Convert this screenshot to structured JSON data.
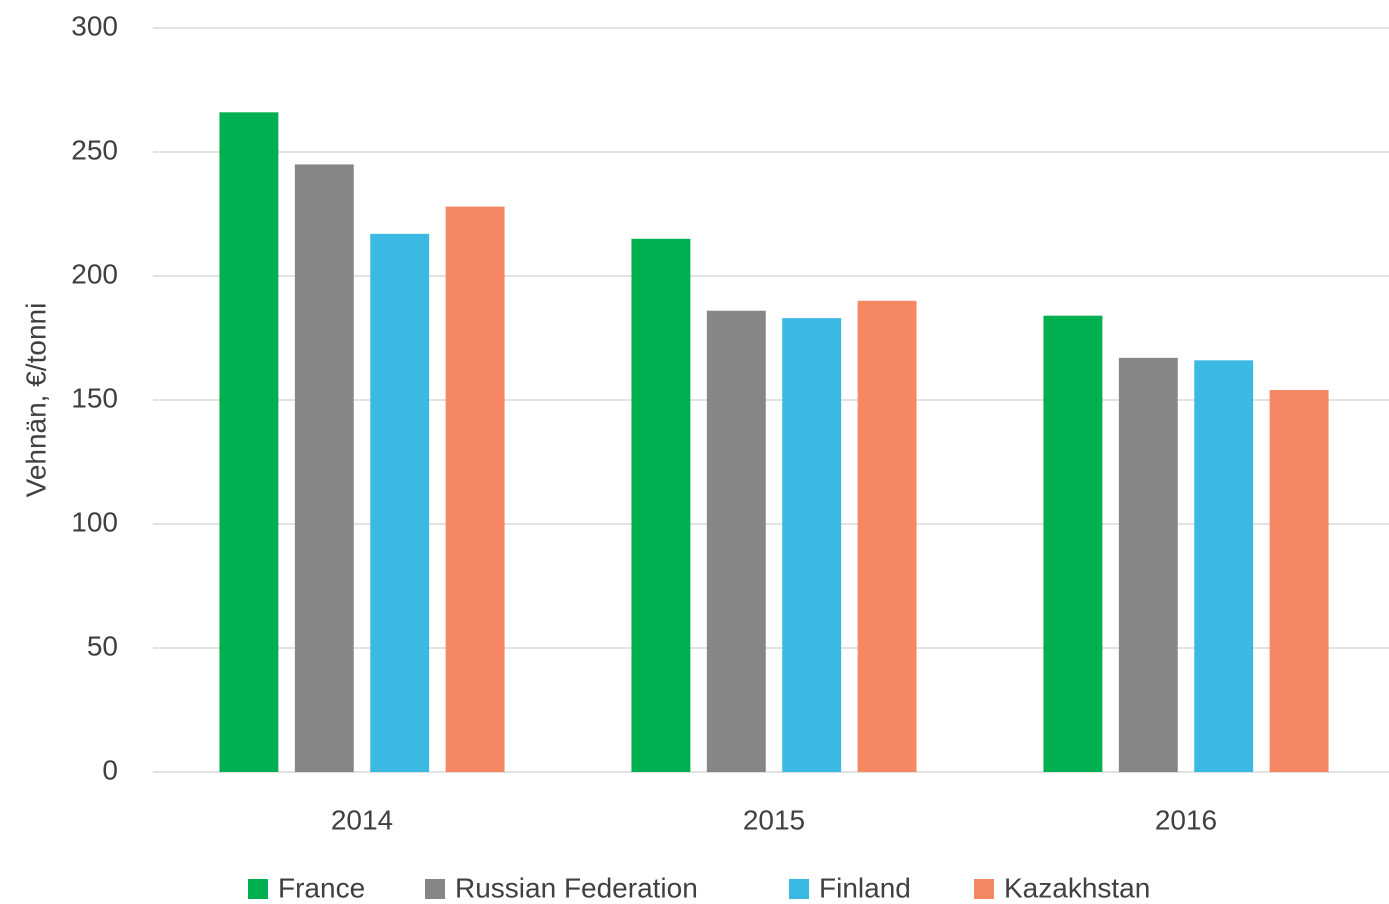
{
  "chart_data": {
    "type": "bar",
    "y_label": "Vehnän, €/tonni",
    "categories": [
      "2014",
      "2015",
      "2016"
    ],
    "series": [
      {
        "name": "France",
        "color": "#00b050",
        "values": [
          266,
          215,
          184
        ]
      },
      {
        "name": "Russian Federation",
        "color": "#868686",
        "values": [
          245,
          186,
          167
        ]
      },
      {
        "name": "Finland",
        "color": "#3cb9e2",
        "values": [
          217,
          183,
          166
        ]
      },
      {
        "name": "Kazakhstan",
        "color": "#f58862",
        "values": [
          228,
          190,
          154
        ]
      }
    ],
    "ylim": [
      0,
      300
    ],
    "yticks": [
      0,
      50,
      100,
      150,
      200,
      250,
      300
    ],
    "grid": true,
    "legend": "bottom"
  }
}
